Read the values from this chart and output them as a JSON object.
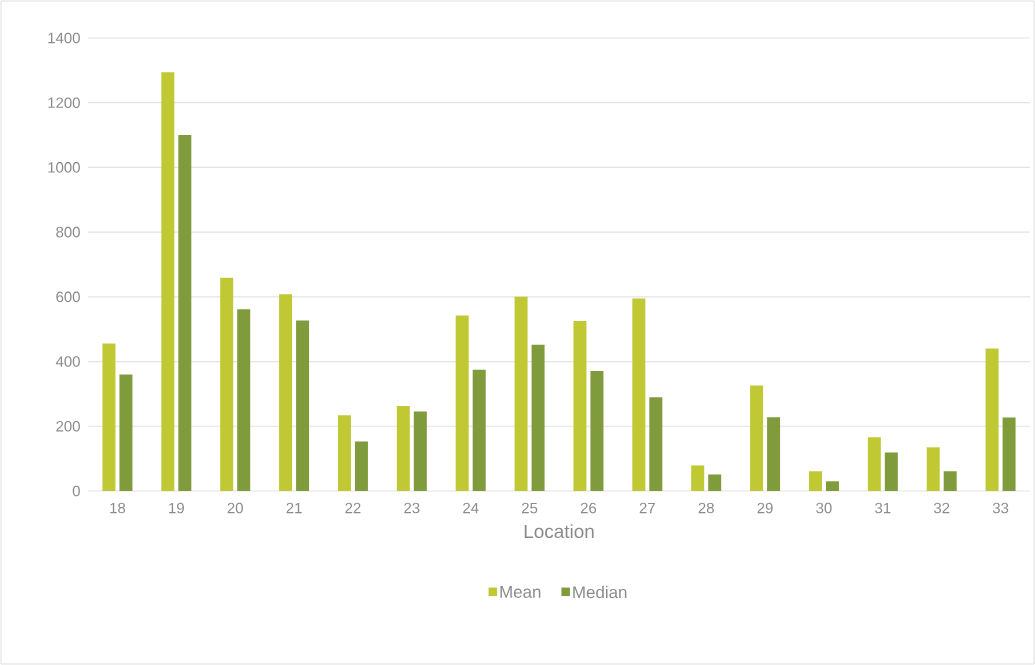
{
  "chart_data": {
    "type": "bar",
    "xlabel": "Location",
    "categories": [
      "18",
      "19",
      "20",
      "21",
      "22",
      "23",
      "24",
      "25",
      "26",
      "27",
      "28",
      "29",
      "30",
      "31",
      "32",
      "33"
    ],
    "series": [
      {
        "name": "Mean",
        "color": "#c0c934",
        "values": [
          456,
          1294,
          659,
          608,
          234,
          263,
          542,
          600,
          525,
          595,
          79,
          326,
          61,
          166,
          135,
          440
        ]
      },
      {
        "name": "Median",
        "color": "#7f9b3c",
        "values": [
          360,
          1100,
          562,
          527,
          153,
          246,
          375,
          452,
          371,
          290,
          51,
          228,
          30,
          119,
          61,
          227
        ]
      }
    ],
    "ylim": [
      0,
      1400
    ],
    "yticks": [
      0,
      200,
      400,
      600,
      800,
      1000,
      1200,
      1400
    ],
    "grid": "y",
    "legend": "bottom"
  }
}
